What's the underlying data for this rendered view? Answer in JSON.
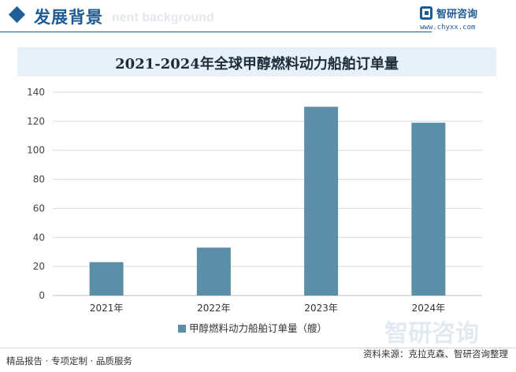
{
  "header": {
    "title": "发展背景",
    "ghost_text": "nent background",
    "brand_name": "智研咨询",
    "brand_url": "www.chyxx.com"
  },
  "chart_data": {
    "type": "bar",
    "title": "2021-2024年全球甲醇燃料动力船舶订单量",
    "categories": [
      "2021年",
      "2022年",
      "2023年",
      "2024年"
    ],
    "series": [
      {
        "name": "甲醇燃料动力船舶订单量（艘）",
        "values": [
          23,
          33,
          130,
          119
        ],
        "color": "#5b8fa8"
      }
    ],
    "ylim": [
      0,
      140
    ],
    "yticks": [
      0,
      20,
      40,
      60,
      80,
      100,
      120,
      140
    ],
    "grid": true,
    "legend_position": "bottom-center"
  },
  "footer": {
    "services": "精品报告 · 专项定制 · 品质服务",
    "source": "资料来源：克拉克森、智研咨询整理"
  },
  "watermark": {
    "text": "智研咨询"
  }
}
